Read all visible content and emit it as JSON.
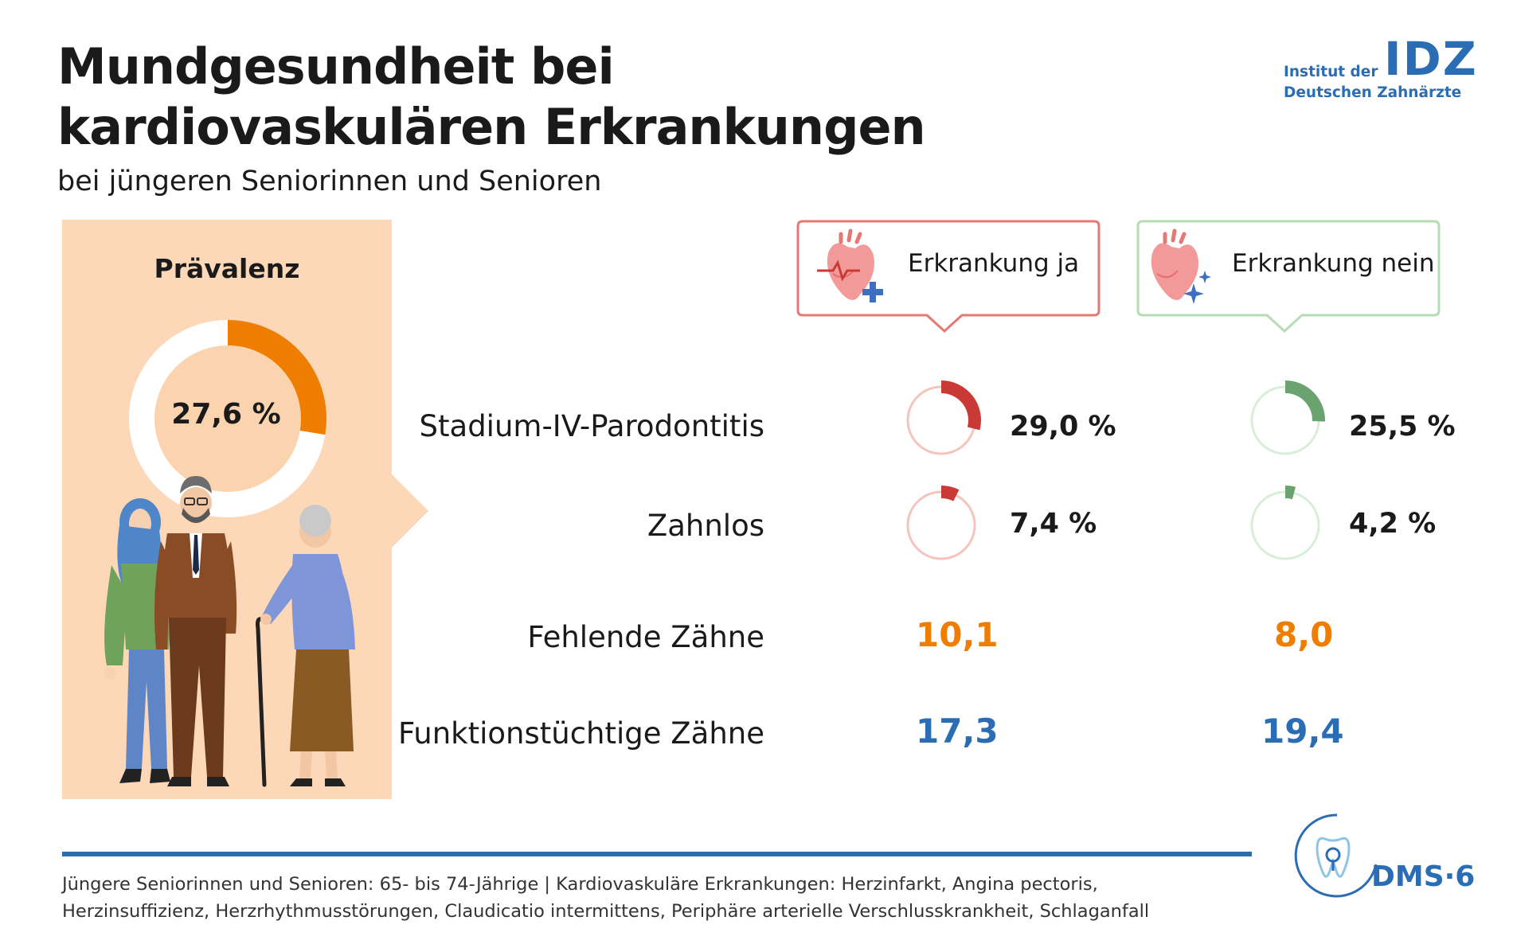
{
  "title_line1": "Mundgesundheit bei",
  "title_line2": "kardiovaskulären Erkrankungen",
  "subtitle": "bei jüngeren Seniorinnen und Senioren",
  "logo": {
    "line1": "Institut der",
    "line2": "Deutschen Zahnärzte",
    "mark": "IDZ"
  },
  "prevalence": {
    "title": "Prävalenz",
    "value_label": "27,6 %",
    "value": 27.6,
    "color": "#ef7d00"
  },
  "groups": [
    {
      "label": "Erkrankung ja",
      "accent": "#e57872",
      "ring_color": "#c93a37",
      "ring_track": "#f4c4bd"
    },
    {
      "label": "Erkrankung nein",
      "accent": "#b5dcb5",
      "ring_color": "#6aa36f",
      "ring_track": "#d9eed8"
    }
  ],
  "rows": [
    {
      "label": "Stadium-IV-Parodontitis",
      "type": "percent",
      "values": [
        29.0,
        25.5
      ],
      "value_labels": [
        "29,0 %",
        "25,5 %"
      ]
    },
    {
      "label": "Zahnlos",
      "type": "percent",
      "values": [
        7.4,
        4.2
      ],
      "value_labels": [
        "7,4 %",
        "4,2 %"
      ]
    },
    {
      "label": "Fehlende Zähne",
      "type": "number",
      "color": "#ef7d00",
      "values": [
        10.1,
        8.0
      ],
      "value_labels": [
        "10,1",
        "8,0"
      ]
    },
    {
      "label": "Funktionstüchtige Zähne",
      "type": "number",
      "color": "#2a6db5",
      "values": [
        17.3,
        19.4
      ],
      "value_labels": [
        "17,3",
        "19,4"
      ]
    }
  ],
  "chart_data": {
    "type": "donut",
    "categories": [
      "Stadium-IV-Parodontitis",
      "Zahnlos",
      "Fehlende Zähne",
      "Funktionstüchtige Zähne"
    ],
    "series": [
      {
        "name": "Erkrankung ja",
        "values": [
          29.0,
          7.4,
          10.1,
          17.3
        ]
      },
      {
        "name": "Erkrankung nein",
        "values": [
          25.5,
          4.2,
          8.0,
          19.4
        ]
      }
    ],
    "prevalence": 27.6,
    "title": "Mundgesundheit bei kardiovaskulären Erkrankungen"
  },
  "footnote_line1": "Jüngere Seniorinnen und Senioren: 65- bis 74-Jährige | Kardiovaskuläre Erkrankungen: Herzinfarkt, Angina pectoris,",
  "footnote_line2": "Herzinsuffizienz, Herzrhythmusstörungen, Claudicatio intermittens, Periphäre arterielle Verschlusskrankheit, Schlaganfall",
  "dms_label": "DMS·6"
}
